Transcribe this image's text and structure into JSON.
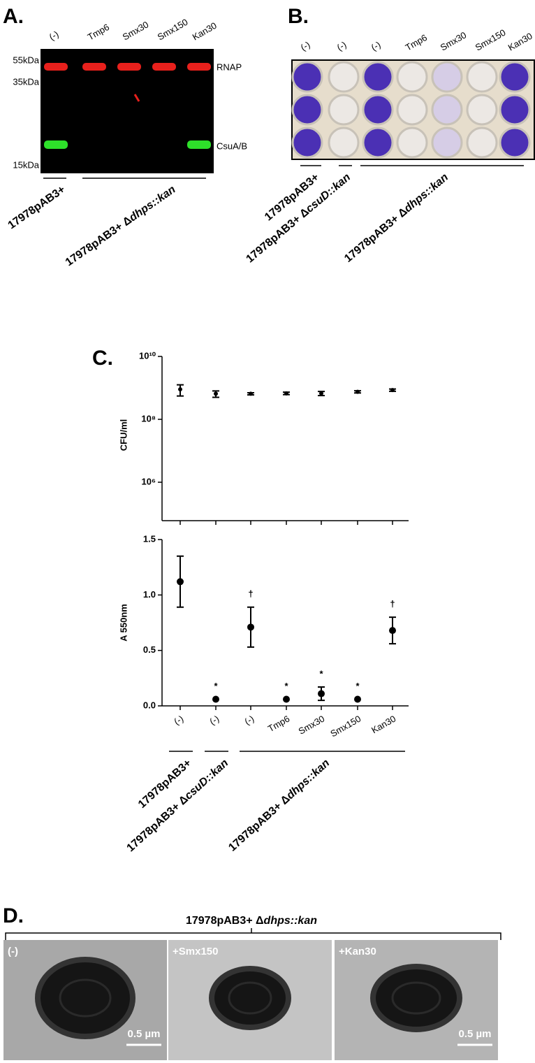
{
  "panel_a": {
    "label": "A.",
    "lanes": [
      "(-)",
      "Tmp6",
      "Smx30",
      "Smx150",
      "Kan30"
    ],
    "markers": [
      "55kDa",
      "35kDa",
      "15kDa"
    ],
    "bands": [
      "RNAP",
      "CsuA/B"
    ],
    "groups": [
      {
        "plain": "17978pAB3+"
      },
      {
        "plain": "17978pAB3+ Δ",
        "italic": "dhps::kan"
      }
    ]
  },
  "panel_b": {
    "label": "B.",
    "columns": [
      "(-)",
      "(-)",
      "(-)",
      "Tmp6",
      "Smx30",
      "Smx150",
      "Kan30"
    ],
    "groups": [
      {
        "plain": "17978pAB3+"
      },
      {
        "plain": "17978pAB3+ Δ",
        "italic": "csuD::kan"
      },
      {
        "plain": "17978pAB3+ Δ",
        "italic": "dhps::kan"
      }
    ]
  },
  "panel_c": {
    "label": "C."
  },
  "chart_data": [
    {
      "type": "scatter",
      "ylabel": "CFU/ml",
      "categories": [
        null,
        null,
        null,
        null,
        null,
        null,
        null
      ],
      "values": [
        900000000,
        650000000,
        650000000,
        670000000,
        670000000,
        750000000,
        850000000
      ],
      "errors": [
        350000000,
        150000000,
        50000000,
        60000000,
        100000000,
        60000000,
        70000000
      ],
      "yscale": "log",
      "ylim": [
        100000,
        10000000000
      ],
      "yticks": [
        {
          "value": 1000000,
          "label": "10⁶"
        },
        {
          "value": 100000000,
          "label": "10⁸"
        },
        {
          "value": 10000000000,
          "label": "10¹⁰"
        }
      ],
      "color": "#000000"
    },
    {
      "type": "scatter",
      "ylabel": "A 550nm",
      "categories": [
        "(-)",
        "(-)",
        "(-)",
        "Tmp6",
        "Smx30",
        "Smx150",
        "Kan30"
      ],
      "values": [
        1.12,
        0.06,
        0.71,
        0.06,
        0.11,
        0.06,
        0.68
      ],
      "errors": [
        0.23,
        null,
        0.18,
        null,
        0.06,
        null,
        0.12
      ],
      "annotations": [
        null,
        "*",
        "†",
        "*",
        "*",
        "*",
        "†"
      ],
      "ylim": [
        0,
        1.5
      ],
      "yticks": [
        {
          "value": 0,
          "label": "0.0"
        },
        0.5,
        {
          "value": 1,
          "label": "1.0"
        },
        1.5
      ],
      "color": "#000000",
      "groups": [
        {
          "plain": "17978pAB3+"
        },
        {
          "plain": "17978pAB3+ Δ",
          "italic": "csuD::kan"
        },
        {
          "plain": "17978pAB3+ Δ",
          "italic": "dhps::kan"
        }
      ]
    }
  ],
  "panel_d": {
    "label": "D.",
    "title": {
      "plain": "17978pAB3+ Δ",
      "italic": "dhps::kan"
    },
    "images": [
      {
        "label": "(-)",
        "scale": "0.5 µm"
      },
      {
        "label": "+Smx150"
      },
      {
        "label": "+Kan30",
        "scale": "0.5 µm"
      }
    ]
  }
}
